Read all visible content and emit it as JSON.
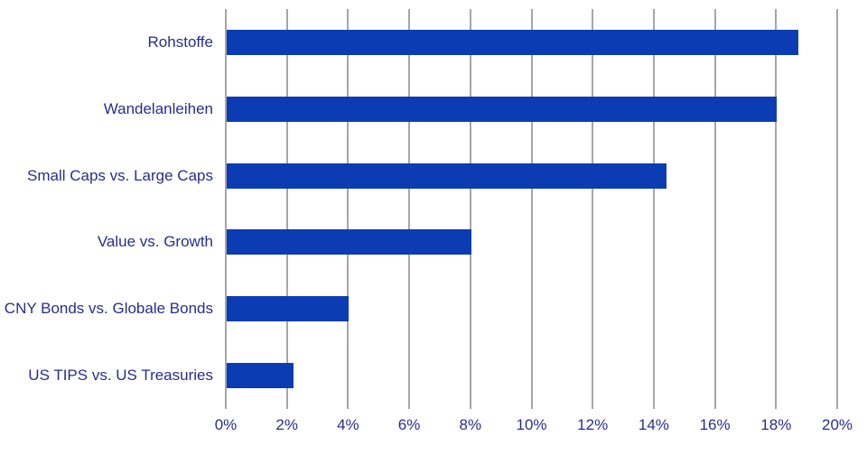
{
  "chart_data": {
    "type": "bar",
    "orientation": "horizontal",
    "title": "",
    "xlabel": "",
    "ylabel": "",
    "categories": [
      "Rohstoffe",
      "Wandelanleihen",
      "Small Caps vs. Large Caps",
      "Value vs. Growth",
      "CNY Bonds vs. Globale Bonds",
      "US TIPS vs. US Treasuries"
    ],
    "values": [
      18.7,
      18.0,
      14.4,
      8.0,
      4.0,
      2.2
    ],
    "unit": "%",
    "xlim": [
      0,
      20
    ],
    "x_tick_step": 2,
    "x_tick_labels": [
      "0%",
      "2%",
      "4%",
      "6%",
      "8%",
      "10%",
      "12%",
      "14%",
      "16%",
      "18%",
      "20%"
    ],
    "grid": "vertical-only",
    "legend": "none",
    "colors": {
      "bar": "#0b3cb3",
      "text": "#282e8c",
      "gridline": "#a6a6a6",
      "background": "#ffffff"
    }
  }
}
